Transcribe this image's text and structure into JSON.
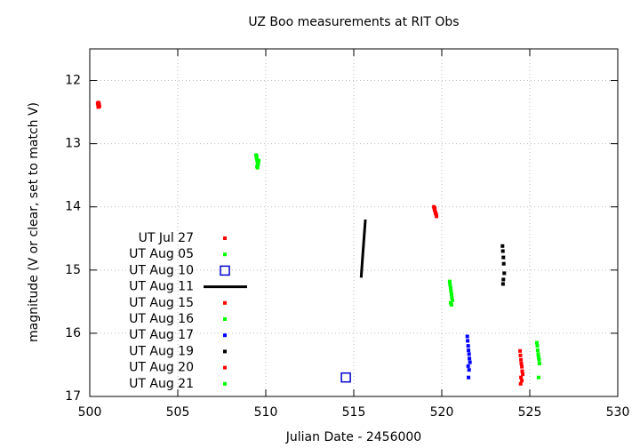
{
  "chart_data": {
    "type": "scatter",
    "title": "UZ Boo measurements at RIT Obs",
    "x_label": "Julian Date - 2456000",
    "y_label": "magnitude (V or clear, set to match V)",
    "xlim": [
      500,
      530
    ],
    "xticks": [
      500,
      505,
      510,
      515,
      520,
      525,
      530
    ],
    "ylim": [
      17,
      11.5
    ],
    "yticks": [
      12,
      13,
      14,
      15,
      16,
      17
    ],
    "y_inverted": true,
    "grid": true,
    "legend": "left",
    "series": [
      {
        "name": "UT Jul 27",
        "color": "#ff0000",
        "marker": "point",
        "x": [
          500.45,
          500.47,
          500.5,
          500.52,
          500.55,
          500.48,
          500.5,
          500.53
        ],
        "values": [
          12.36,
          12.38,
          12.4,
          12.37,
          12.41,
          12.42,
          12.35,
          12.39
        ]
      },
      {
        "name": "UT Aug 05",
        "color": "#00ff00",
        "marker": "point",
        "x": [
          509.45,
          509.47,
          509.5,
          509.52,
          509.55,
          509.48,
          509.57,
          509.5,
          509.53,
          509.6
        ],
        "values": [
          13.18,
          13.22,
          13.25,
          13.28,
          13.3,
          13.2,
          13.33,
          13.36,
          13.38,
          13.27
        ]
      },
      {
        "name": "UT Aug 10",
        "color": "#0000cc",
        "marker": "open-square",
        "x": [
          514.55
        ],
        "values": [
          16.7
        ]
      },
      {
        "name": "UT Aug 11",
        "color": "#000000",
        "marker": "line",
        "x": [
          515.42,
          515.5,
          515.58,
          515.66
        ],
        "values": [
          15.12,
          14.8,
          14.5,
          14.2
        ]
      },
      {
        "name": "UT Aug 15",
        "color": "#ff0000",
        "marker": "point",
        "x": [
          519.55,
          519.58,
          519.6,
          519.63,
          519.65,
          519.68,
          519.7,
          519.6
        ],
        "values": [
          14.0,
          14.03,
          14.05,
          14.08,
          14.1,
          14.12,
          14.15,
          14.02
        ]
      },
      {
        "name": "UT Aug 16",
        "color": "#00ff00",
        "marker": "point",
        "x": [
          520.45,
          520.47,
          520.5,
          520.52,
          520.55,
          520.57,
          520.6,
          520.5,
          520.55
        ],
        "values": [
          15.18,
          15.23,
          15.28,
          15.33,
          15.38,
          15.43,
          15.48,
          15.52,
          15.55
        ]
      },
      {
        "name": "UT Aug 17",
        "color": "#0000ff",
        "marker": "point",
        "x": [
          521.45,
          521.47,
          521.5,
          521.52,
          521.55,
          521.57,
          521.6,
          521.5,
          521.55,
          521.52
        ],
        "values": [
          16.05,
          16.12,
          16.2,
          16.27,
          16.33,
          16.4,
          16.46,
          16.52,
          16.58,
          16.7
        ]
      },
      {
        "name": "UT Aug 19",
        "color": "#000000",
        "marker": "point",
        "x": [
          523.45,
          523.47,
          523.5,
          523.52,
          523.55,
          523.5,
          523.48
        ],
        "values": [
          14.62,
          14.7,
          14.8,
          14.9,
          15.05,
          15.15,
          15.22
        ]
      },
      {
        "name": "UT Aug 20",
        "color": "#ff0000",
        "marker": "point",
        "x": [
          524.45,
          524.47,
          524.5,
          524.52,
          524.55,
          524.57,
          524.6,
          524.5,
          524.55,
          524.48
        ],
        "values": [
          16.28,
          16.35,
          16.42,
          16.48,
          16.53,
          16.6,
          16.65,
          16.7,
          16.75,
          16.8
        ]
      },
      {
        "name": "UT Aug 21",
        "color": "#00ff00",
        "marker": "point",
        "x": [
          525.4,
          525.43,
          525.45,
          525.48,
          525.5,
          525.53,
          525.55,
          525.5
        ],
        "values": [
          16.15,
          16.2,
          16.27,
          16.33,
          16.38,
          16.42,
          16.48,
          16.7
        ]
      }
    ]
  }
}
